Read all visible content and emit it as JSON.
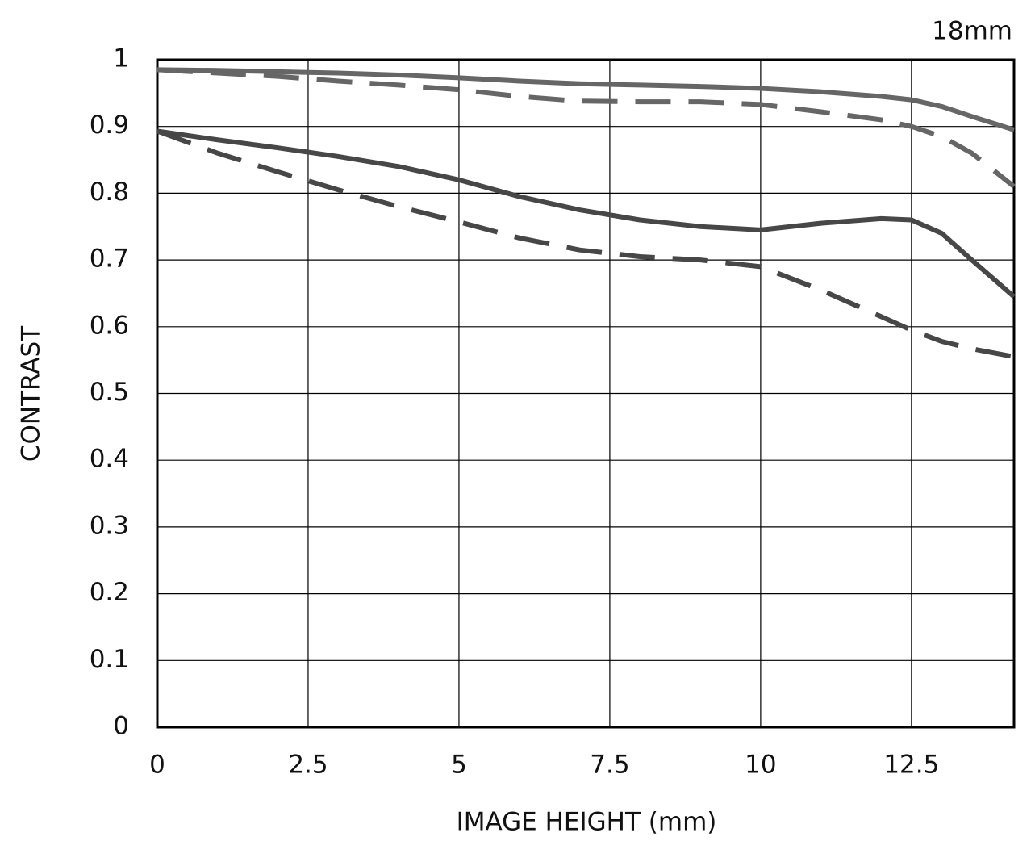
{
  "chart_data": {
    "type": "line",
    "annotation": "18mm",
    "xlabel": "IMAGE HEIGHT (mm)",
    "ylabel": "CONTRAST",
    "x": [
      0,
      1,
      2,
      3,
      4,
      5,
      6,
      7,
      8,
      9,
      10,
      11,
      12,
      12.5,
      13,
      13.5,
      14.2
    ],
    "series": [
      {
        "color": "#666666",
        "dashed": false,
        "values": [
          0.985,
          0.984,
          0.982,
          0.98,
          0.977,
          0.973,
          0.968,
          0.964,
          0.962,
          0.96,
          0.957,
          0.952,
          0.945,
          0.94,
          0.93,
          0.915,
          0.895
        ]
      },
      {
        "color": "#666666",
        "dashed": true,
        "values": [
          0.985,
          0.98,
          0.975,
          0.968,
          0.962,
          0.955,
          0.945,
          0.938,
          0.937,
          0.937,
          0.933,
          0.922,
          0.91,
          0.9,
          0.885,
          0.86,
          0.81
        ]
      },
      {
        "color": "#474747",
        "dashed": false,
        "values": [
          0.893,
          0.88,
          0.868,
          0.855,
          0.84,
          0.82,
          0.795,
          0.775,
          0.76,
          0.75,
          0.745,
          0.755,
          0.762,
          0.76,
          0.74,
          0.7,
          0.645
        ]
      },
      {
        "color": "#474747",
        "dashed": true,
        "values": [
          0.893,
          0.86,
          0.832,
          0.805,
          0.78,
          0.757,
          0.733,
          0.715,
          0.705,
          0.7,
          0.69,
          0.655,
          0.615,
          0.595,
          0.578,
          0.567,
          0.555
        ]
      }
    ],
    "xlim": [
      0,
      14.2
    ],
    "xticks": [
      0,
      2.5,
      5,
      7.5,
      10,
      12.5
    ],
    "ylim": [
      0,
      1
    ],
    "yticks": [
      0,
      0.1,
      0.2,
      0.3,
      0.4,
      0.5,
      0.6,
      0.7,
      0.8,
      0.9,
      1
    ],
    "grid": true
  }
}
